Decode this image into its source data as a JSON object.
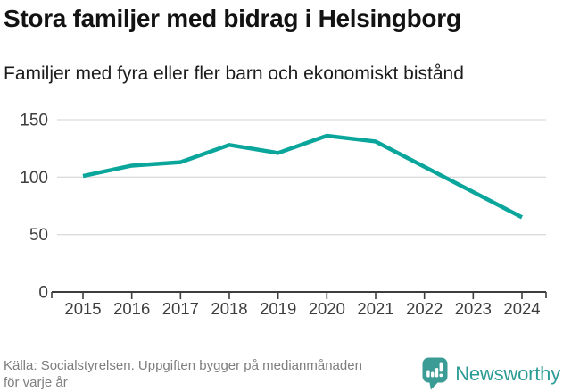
{
  "header": {
    "title": "Stora familjer med bidrag i Helsingborg",
    "subtitle": "Familjer med fyra eller fler barn och ekonomiskt bistånd"
  },
  "chart_data": {
    "type": "line",
    "x": [
      2015,
      2016,
      2017,
      2018,
      2019,
      2020,
      2021,
      2022,
      2023,
      2024
    ],
    "series": [
      {
        "name": "Familjer med fyra eller fler barn och ekonomiskt bistånd",
        "values": [
          101,
          110,
          113,
          128,
          121,
          136,
          131,
          109,
          87,
          65
        ]
      }
    ],
    "title": "Stora familjer med bidrag i Helsingborg",
    "xlabel": "",
    "ylabel": "",
    "ylim": [
      0,
      150
    ],
    "yticks": [
      0,
      50,
      100,
      150
    ],
    "grid": true,
    "legend_position": "none",
    "colors": {
      "line": "#0aa69c",
      "gridline": "#dcdcdc",
      "axis": "#3d3d3d",
      "tick_label": "#3d3d3d"
    }
  },
  "footer": {
    "source_lines": [
      "Källa: Socialstyrelsen. Uppgiften bygger på medianmånaden",
      "för varje år"
    ],
    "brand": {
      "name": "Newsworthy",
      "text_color": "#2d9c95",
      "icon": "newsworthy-speech-bubble-bar-chart-icon",
      "icon_color": "#3b9c96"
    }
  }
}
